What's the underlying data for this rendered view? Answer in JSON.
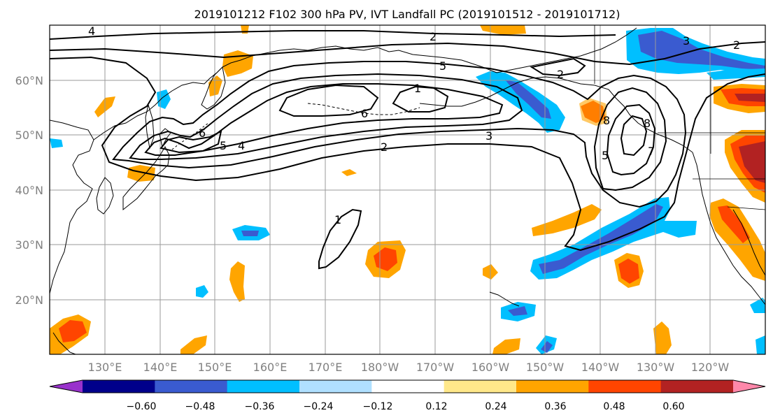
{
  "figure": {
    "title": "2019101212 F102 300 hPa PV, IVT Landfall PC (2019101512 - 2019101712)"
  },
  "map": {
    "lat_labels": [
      "60°N",
      "50°N",
      "40°N",
      "30°N",
      "20°N"
    ],
    "lon_labels": [
      "130°E",
      "140°E",
      "150°E",
      "160°E",
      "170°E",
      "180°W",
      "170°W",
      "160°W",
      "150°W",
      "140°W",
      "130°W",
      "120°W"
    ],
    "contour_labels": [
      "4",
      "2",
      "3",
      "2",
      "5",
      "2",
      "1",
      "6",
      "3",
      "2",
      "6",
      "5",
      "4",
      "8",
      "8",
      "5",
      "7",
      "1"
    ]
  },
  "colorbar": {
    "tick_labels": [
      "−0.60",
      "−0.48",
      "−0.36",
      "−0.24",
      "−0.12",
      "0.12",
      "0.24",
      "0.36",
      "0.48",
      "0.60"
    ],
    "colors": [
      "#9932cc",
      "#00008b",
      "#3a5bd0",
      "#00bfff",
      "#b0e0ff",
      "#ffffff",
      "#ffe88a",
      "#ffa500",
      "#ff4500",
      "#b22222",
      "#ff88aa"
    ]
  }
}
